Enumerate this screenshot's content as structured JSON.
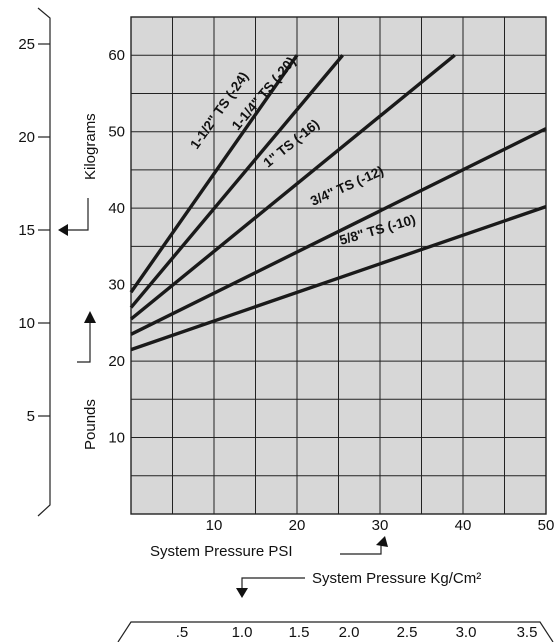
{
  "chart_data": {
    "type": "line",
    "xlabel": "System Pressure PSI",
    "ylabel": "Pounds",
    "xlim": [
      0,
      50
    ],
    "ylim": [
      0,
      60
    ],
    "x_ticks": [
      "10",
      "20",
      "30",
      "40",
      "50"
    ],
    "y_ticks": [
      "10",
      "20",
      "30",
      "40",
      "50",
      "60"
    ],
    "grid": true,
    "series": [
      {
        "name": "1-1/2\" TS (-24)",
        "x": [
          0,
          20
        ],
        "y": [
          29,
          60
        ]
      },
      {
        "name": "1-1/4\" TS (-20)",
        "x": [
          0,
          25.5
        ],
        "y": [
          27,
          60
        ]
      },
      {
        "name": "1\" TS (-16)",
        "x": [
          0,
          39
        ],
        "y": [
          25.5,
          60
        ]
      },
      {
        "name": "3/4\" TS (-12)",
        "x": [
          0,
          50
        ],
        "y": [
          23.5,
          50.4
        ]
      },
      {
        "name": "5/8\" TS (-10)",
        "x": [
          0,
          50
        ],
        "y": [
          21.5,
          40.2
        ]
      }
    ],
    "secondary_y": {
      "label": "Kilograms",
      "ticks": [
        "5",
        "10",
        "15",
        "20",
        "25"
      ]
    },
    "secondary_x": {
      "label": "System Pressure Kg/Cm²",
      "ticks": [
        ".5",
        "1.0",
        "1.5",
        "2.0",
        "2.5",
        "3.0",
        "3.5"
      ]
    }
  }
}
